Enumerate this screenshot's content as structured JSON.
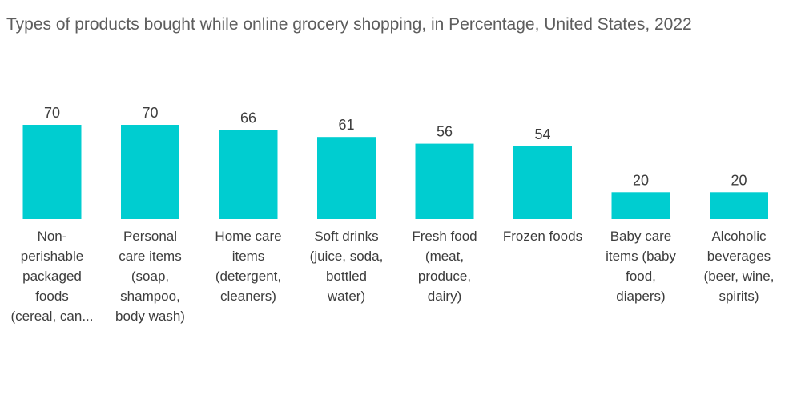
{
  "chart_data": {
    "type": "bar",
    "title": "Types of products bought while online grocery shopping, in Percentage, United States, 2022",
    "xlabel": "",
    "ylabel": "",
    "ylim": [
      0,
      70
    ],
    "grid": false,
    "legend": "none",
    "categories": [
      "Non-perishable packaged foods (cereal, can...",
      "Personal care items (soap, shampoo, body wash)",
      "Home care items (detergent, cleaners)",
      "Soft drinks (juice, soda, bottled water)",
      "Fresh food (meat, produce, dairy)",
      "Frozen foods",
      "Baby care items (baby food, diapers)",
      "Alcoholic beverages (beer, wine, spirits)"
    ],
    "category_lines": [
      [
        "Non-",
        "perishable",
        "packaged",
        "foods",
        "(cereal, can..."
      ],
      [
        "Personal",
        "care items",
        "(soap,",
        "shampoo,",
        "body wash)"
      ],
      [
        "Home care",
        "items",
        "(detergent,",
        "cleaners)"
      ],
      [
        "Soft drinks",
        "(juice, soda,",
        "bottled",
        "water)"
      ],
      [
        "Fresh food",
        "(meat,",
        "produce,",
        "dairy)"
      ],
      [
        "Frozen foods"
      ],
      [
        "Baby care",
        "items (baby",
        "food,",
        "diapers)"
      ],
      [
        "Alcoholic",
        "beverages",
        "(beer, wine,",
        "spirits)"
      ]
    ],
    "values": [
      70,
      70,
      66,
      61,
      56,
      54,
      20,
      20
    ],
    "bar_color": "#00cdd0"
  }
}
